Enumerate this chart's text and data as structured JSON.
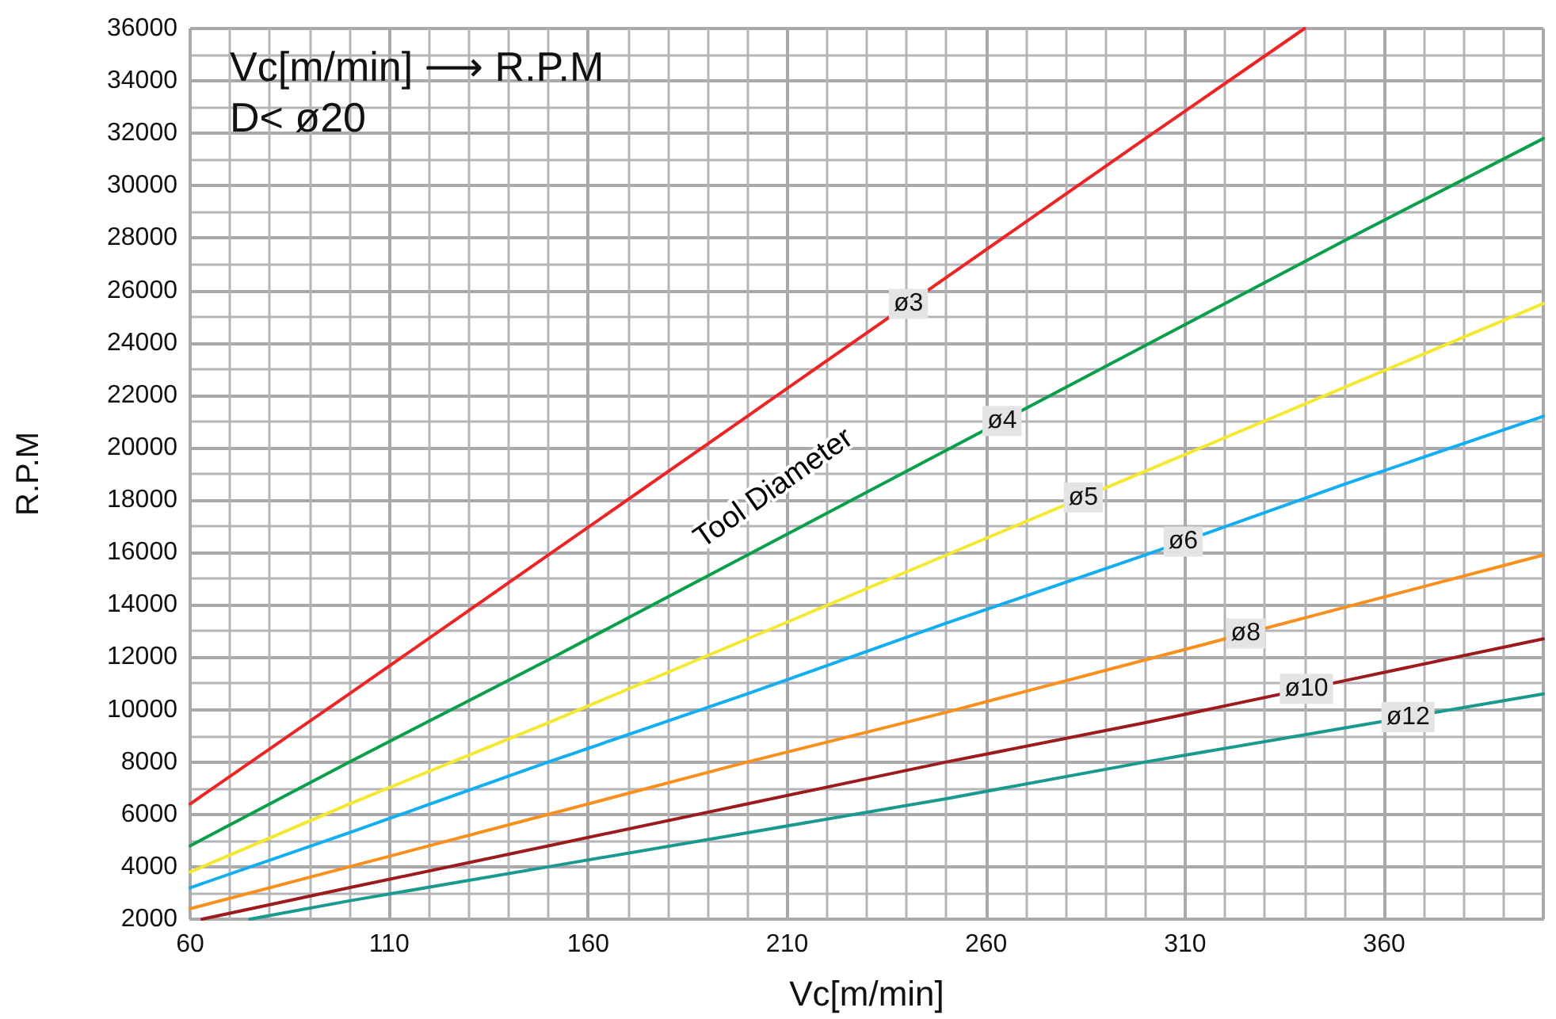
{
  "chart_data": {
    "type": "line",
    "title": "Vc[m/min] ⟶ R.P.M",
    "subtitle": "D< ø20",
    "xlabel": "Vc[m/min]",
    "ylabel": "R.P.M",
    "annotations": [
      "Tool Diameter"
    ],
    "xlim": [
      60,
      400
    ],
    "xticks": [
      60,
      110,
      160,
      210,
      260,
      310,
      360
    ],
    "ylim": [
      2000,
      36000
    ],
    "yticks": [
      2000,
      4000,
      6000,
      8000,
      10000,
      12000,
      14000,
      16000,
      18000,
      20000,
      22000,
      24000,
      26000,
      28000,
      30000,
      32000,
      34000,
      36000
    ],
    "grid": true,
    "legend": false,
    "marker": "none",
    "line_style": "solid",
    "series": [
      {
        "name": "ø3",
        "color": "#ee2424",
        "x": [
          60,
          100,
          150,
          200,
          250,
          300,
          340
        ],
        "values": [
          6400,
          10600,
          15900,
          21200,
          26500,
          31800,
          36000
        ]
      },
      {
        "name": "ø4",
        "color": "#0aa04a",
        "x": [
          60,
          100,
          150,
          200,
          250,
          300,
          350,
          400
        ],
        "values": [
          4800,
          8000,
          11900,
          15900,
          19900,
          23900,
          27900,
          31800
        ]
      },
      {
        "name": "ø5",
        "color": "#f5e830",
        "x": [
          60,
          100,
          150,
          200,
          250,
          300,
          350,
          400
        ],
        "values": [
          3800,
          6400,
          9500,
          12700,
          15900,
          19100,
          22300,
          25500
        ]
      },
      {
        "name": "ø6",
        "color": "#13aeef",
        "x": [
          60,
          100,
          150,
          200,
          250,
          300,
          350,
          400
        ],
        "values": [
          3200,
          5300,
          8000,
          10600,
          13300,
          15900,
          18600,
          21200
        ]
      },
      {
        "name": "ø8",
        "color": "#f7901e",
        "x": [
          60,
          100,
          150,
          200,
          250,
          300,
          350,
          400
        ],
        "values": [
          2400,
          4000,
          6000,
          8000,
          9900,
          11900,
          13900,
          15900
        ]
      },
      {
        "name": "ø10",
        "color": "#9b1b1f",
        "x": [
          63,
          100,
          150,
          200,
          250,
          300,
          350,
          400
        ],
        "values": [
          2000,
          3200,
          4800,
          6400,
          8000,
          9500,
          11100,
          12700
        ]
      },
      {
        "name": "ø12",
        "color": "#1a9a8e",
        "x": [
          75,
          100,
          150,
          200,
          250,
          300,
          350,
          400
        ],
        "values": [
          2000,
          2700,
          4000,
          5300,
          6600,
          8000,
          9300,
          10600
        ]
      }
    ]
  }
}
